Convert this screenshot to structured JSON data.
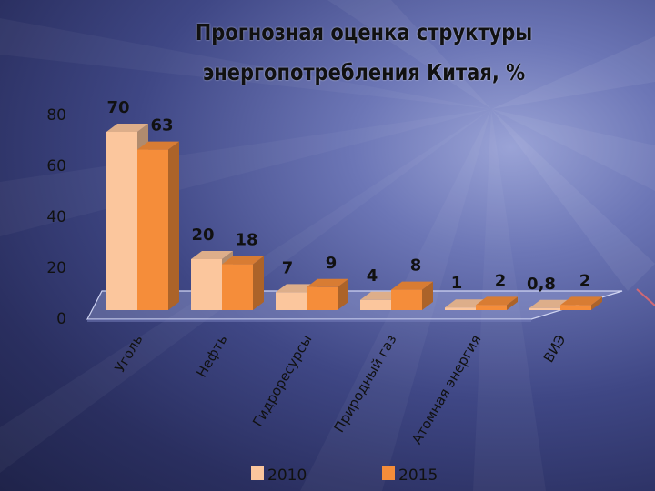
{
  "chart_data": {
    "type": "bar",
    "title_lines": [
      "Прогнозная оценка структуры",
      "энергопотребления Китая, %"
    ],
    "categories": [
      "Уголь",
      "Нефть",
      "Гидроресурсы",
      "Природный газ",
      "Атомная энергия",
      "ВИЭ"
    ],
    "series": [
      {
        "name": "2010",
        "values": [
          70,
          20,
          7,
          4,
          1,
          0.8
        ],
        "labels": [
          "70",
          "20",
          "7",
          "4",
          "1",
          "0,8"
        ],
        "color": "#fbc69d"
      },
      {
        "name": "2015",
        "values": [
          63,
          18,
          9,
          8,
          2,
          2
        ],
        "labels": [
          "63",
          "18",
          "9",
          "8",
          "2",
          "2"
        ],
        "color": "#f58d3a"
      }
    ],
    "ylim": [
      0,
      80
    ],
    "yticks": [
      "0",
      "20",
      "40",
      "60",
      "80"
    ],
    "legend_position": "bottom",
    "grid": false,
    "bar_style": "3d"
  }
}
